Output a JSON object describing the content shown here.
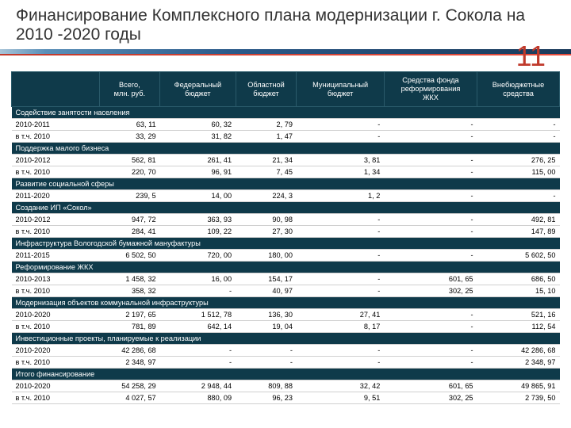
{
  "title": "Финансирование Комплексного плана модернизации г. Сокола на 2010 -2020 годы",
  "page_number": "11",
  "headers": [
    "",
    "Всего,\nмлн. руб.",
    "Федеральный\nбюджет",
    "Областной\nбюджет",
    "Муниципальный\nбюджет",
    "Средства фонда\nреформирования\nЖКХ",
    "Внебюджетные\nсредства"
  ],
  "rows": [
    {
      "section": true,
      "label": "Содействие занятости населения"
    },
    {
      "label": "2010-2011",
      "c": [
        "63, 11",
        "60, 32",
        "2, 79",
        "-",
        "-",
        "-"
      ]
    },
    {
      "label": "в т.ч. 2010",
      "c": [
        "33, 29",
        "31, 82",
        "1, 47",
        "-",
        "-",
        "-"
      ]
    },
    {
      "section": true,
      "label": "Поддержка малого бизнеса"
    },
    {
      "label": "2010-2012",
      "c": [
        "562, 81",
        "261, 41",
        "21, 34",
        "3, 81",
        "-",
        "276, 25"
      ]
    },
    {
      "label": "в т.ч. 2010",
      "c": [
        "220, 70",
        "96, 91",
        "7, 45",
        "1, 34",
        "-",
        "115, 00"
      ]
    },
    {
      "section": true,
      "label": "Развитие социальной сферы"
    },
    {
      "label": "2011-2020",
      "c": [
        "239, 5",
        "14, 00",
        "224, 3",
        "1, 2",
        "-",
        "-"
      ]
    },
    {
      "section": true,
      "label": "Создание ИП «Сокол»"
    },
    {
      "label": "2010-2012",
      "c": [
        "947, 72",
        "363, 93",
        "90, 98",
        "-",
        "-",
        "492, 81"
      ]
    },
    {
      "label": "в т.ч. 2010",
      "c": [
        "284, 41",
        "109, 22",
        "27, 30",
        "-",
        "-",
        "147, 89"
      ]
    },
    {
      "section": true,
      "label": "Инфраструктура Вологодской бумажной мануфактуры"
    },
    {
      "label": "2011-2015",
      "c": [
        "6 502, 50",
        "720, 00",
        "180, 00",
        "-",
        "-",
        "5 602, 50"
      ]
    },
    {
      "section": true,
      "label": "Реформирование ЖКХ"
    },
    {
      "label": "2010-2013",
      "c": [
        "1 458, 32",
        "16, 00",
        "154, 17",
        "-",
        "601, 65",
        "686, 50"
      ]
    },
    {
      "label": "в т.ч. 2010",
      "c": [
        "358, 32",
        "-",
        "40, 97",
        "-",
        "302, 25",
        "15, 10"
      ]
    },
    {
      "section": true,
      "label": "Модернизация объектов коммунальной инфраструктуры"
    },
    {
      "label": "2010-2020",
      "c": [
        "2 197, 65",
        "1 512, 78",
        "136, 30",
        "27, 41",
        "-",
        "521, 16"
      ]
    },
    {
      "label": "в т.ч. 2010",
      "c": [
        "781, 89",
        "642, 14",
        "19, 04",
        "8, 17",
        "-",
        "112, 54"
      ]
    },
    {
      "section": true,
      "label": "Инвестиционные проекты, планируемые к реализации"
    },
    {
      "label": "2010-2020",
      "c": [
        "42 286, 68",
        "-",
        "-",
        "-",
        "-",
        "42 286, 68"
      ]
    },
    {
      "label": "в т.ч. 2010",
      "c": [
        "2 348, 97",
        "-",
        "-",
        "-",
        "-",
        "2 348, 97"
      ]
    },
    {
      "section": true,
      "label": "Итого финансирование"
    },
    {
      "label": "2010-2020",
      "c": [
        "54 258, 29",
        "2 948, 44",
        "809, 88",
        "32, 42",
        "601, 65",
        "49 865, 91"
      ]
    },
    {
      "label": "в т.ч. 2010",
      "c": [
        "4 027, 57",
        "880, 09",
        "96, 23",
        "9, 51",
        "302, 25",
        "2 739, 50"
      ]
    }
  ]
}
